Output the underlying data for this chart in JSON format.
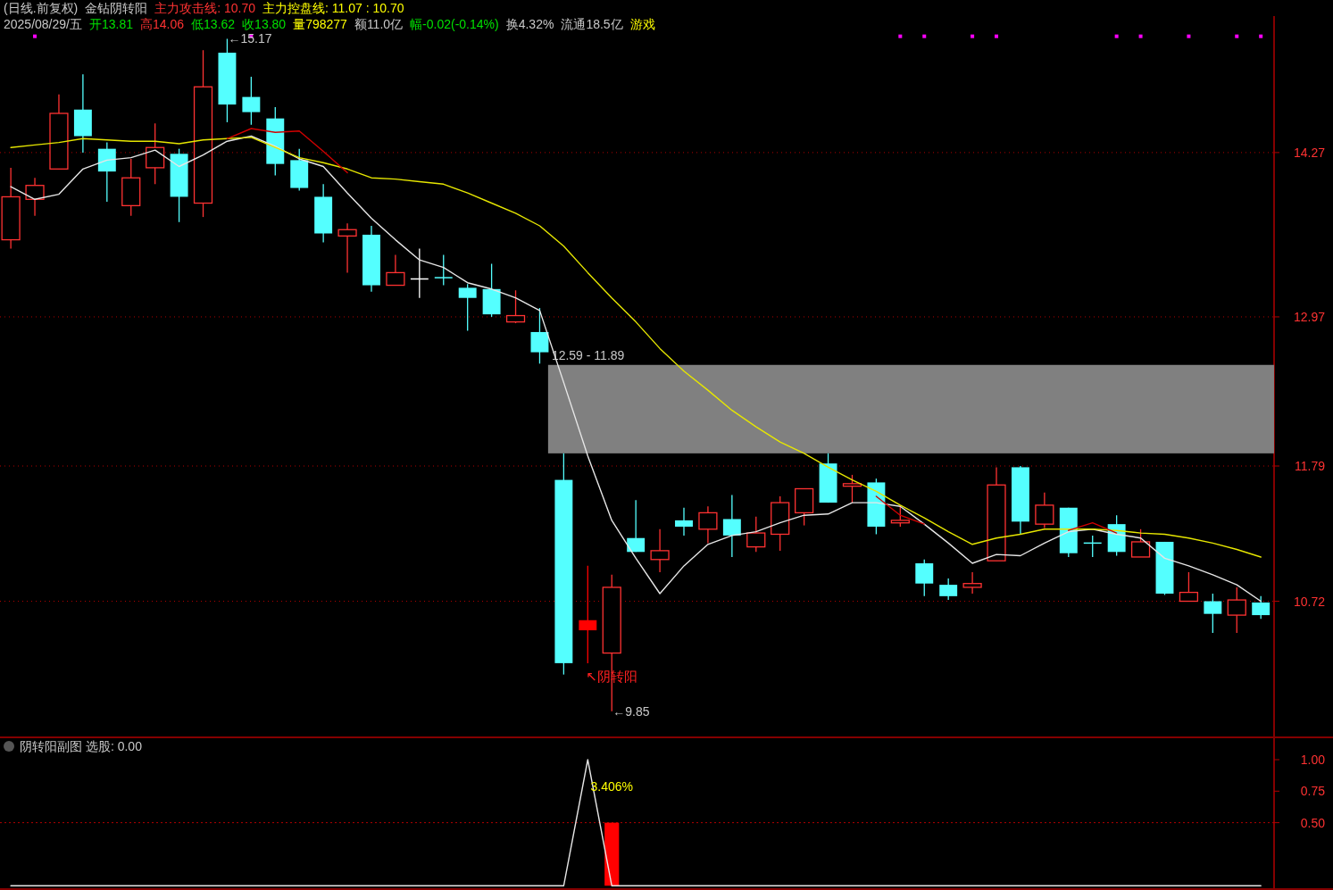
{
  "chart_data": [
    {
      "type": "candlestick",
      "tick_labels": "y",
      "categories": [
        null,
        null,
        null,
        null,
        null,
        null,
        null,
        null,
        null,
        null,
        null,
        null,
        null,
        null,
        null,
        null,
        null,
        null,
        null,
        null,
        null,
        null,
        null,
        null,
        null,
        null,
        null,
        null,
        null,
        null,
        null,
        null,
        null,
        null,
        null,
        null,
        null,
        null,
        null,
        null,
        null,
        null,
        null,
        null,
        null,
        null,
        null,
        null,
        null,
        null,
        null,
        null,
        null
      ],
      "ohlc": [
        [
          13.58,
          14.15,
          13.51,
          13.92
        ],
        [
          13.9,
          14.07,
          13.77,
          14.01
        ],
        [
          14.14,
          14.73,
          14.14,
          14.58
        ],
        [
          14.61,
          14.89,
          14.27,
          14.4
        ],
        [
          14.3,
          14.35,
          13.88,
          14.12
        ],
        [
          13.85,
          14.22,
          13.77,
          14.07
        ],
        [
          14.15,
          14.5,
          14.02,
          14.31
        ],
        [
          14.26,
          14.3,
          13.72,
          13.92
        ],
        [
          13.87,
          15.08,
          13.76,
          14.79
        ],
        [
          15.06,
          15.17,
          14.51,
          14.65
        ],
        [
          14.71,
          14.87,
          14.49,
          14.59
        ],
        [
          14.54,
          14.63,
          14.09,
          14.18
        ],
        [
          14.21,
          14.3,
          13.97,
          13.99
        ],
        [
          13.92,
          14.02,
          13.56,
          13.63
        ],
        [
          13.61,
          13.71,
          13.32,
          13.66
        ],
        [
          13.62,
          13.69,
          13.17,
          13.22
        ],
        [
          13.22,
          13.46,
          13.22,
          13.32
        ],
        [
          13.27,
          13.51,
          13.12,
          13.27
        ],
        [
          13.28,
          13.46,
          13.22,
          13.28
        ],
        [
          13.2,
          13.23,
          12.86,
          13.12
        ],
        [
          13.19,
          13.39,
          12.97,
          12.99
        ],
        [
          12.93,
          13.18,
          12.92,
          12.98
        ],
        [
          12.85,
          13.04,
          12.6,
          12.69
        ],
        [
          11.68,
          11.89,
          10.14,
          10.23
        ],
        [
          10.57,
          11.0,
          10.23,
          10.49
        ],
        [
          10.31,
          10.93,
          9.85,
          10.83
        ],
        [
          11.22,
          11.52,
          11.11,
          11.11
        ],
        [
          11.05,
          11.29,
          10.95,
          11.12
        ],
        [
          11.36,
          11.46,
          11.24,
          11.31
        ],
        [
          11.29,
          11.47,
          11.18,
          11.42
        ],
        [
          11.37,
          11.56,
          11.07,
          11.24
        ],
        [
          11.15,
          11.39,
          11.11,
          11.26
        ],
        [
          11.25,
          11.55,
          11.12,
          11.5
        ],
        [
          11.42,
          11.61,
          11.32,
          11.61
        ],
        [
          11.81,
          11.89,
          11.5,
          11.5
        ],
        [
          11.63,
          11.72,
          11.5,
          11.65
        ],
        [
          11.66,
          11.69,
          11.25,
          11.31
        ],
        [
          11.34,
          11.48,
          11.31,
          11.36
        ],
        [
          11.02,
          11.05,
          10.76,
          10.86
        ],
        [
          10.85,
          10.9,
          10.73,
          10.76
        ],
        [
          10.83,
          10.95,
          10.78,
          10.86
        ],
        [
          11.04,
          11.78,
          11.04,
          11.64
        ],
        [
          11.78,
          11.79,
          11.25,
          11.35
        ],
        [
          11.33,
          11.58,
          11.3,
          11.48
        ],
        [
          11.46,
          11.46,
          11.07,
          11.1
        ],
        [
          11.18,
          11.24,
          11.07,
          11.18
        ],
        [
          11.33,
          11.4,
          11.08,
          11.11
        ],
        [
          11.07,
          11.29,
          11.07,
          11.19
        ],
        [
          11.19,
          11.19,
          10.77,
          10.78
        ],
        [
          10.72,
          10.95,
          10.72,
          10.79
        ],
        [
          10.72,
          10.78,
          10.47,
          10.62
        ],
        [
          10.61,
          10.83,
          10.47,
          10.73
        ],
        [
          10.71,
          10.76,
          10.58,
          10.61
        ]
      ],
      "colors": [
        "#ff3232",
        "#ff3232",
        "#ff3232",
        "#54ffff",
        "#54ffff",
        "#ff3232",
        "#ff3232",
        "#54ffff",
        "#ff3232",
        "#54ffff",
        "#54ffff",
        "#54ffff",
        "#54ffff",
        "#54ffff",
        "#ff3232",
        "#54ffff",
        "#ff3232",
        "#ffffff",
        "#54ffff",
        "#54ffff",
        "#54ffff",
        "#ff3232",
        "#54ffff",
        "#54ffff",
        "#ff0000",
        "#ff3232",
        "#54ffff",
        "#ff3232",
        "#54ffff",
        "#ff3232",
        "#54ffff",
        "#ff3232",
        "#ff3232",
        "#ff3232",
        "#54ffff",
        "#ff3232",
        "#54ffff",
        "#ff3232",
        "#54ffff",
        "#54ffff",
        "#ff3232",
        "#ff3232",
        "#54ffff",
        "#ff3232",
        "#54ffff",
        "#54ffff",
        "#54ffff",
        "#ff3232",
        "#54ffff",
        "#ff3232",
        "#54ffff",
        "#ff3232",
        "#54ffff"
      ],
      "series": [
        {
          "type": "line",
          "color": "#e6e6e6",
          "values": [
            14.0,
            13.9,
            13.94,
            14.14,
            14.21,
            14.23,
            14.29,
            14.16,
            14.25,
            14.36,
            14.4,
            14.32,
            14.22,
            14.16,
            13.95,
            13.75,
            13.58,
            13.42,
            13.36,
            13.24,
            13.19,
            13.12,
            13.02,
            12.45,
            11.87,
            11.36,
            11.06,
            10.78,
            11.0,
            11.17,
            11.24,
            11.27,
            11.34,
            11.4,
            11.41,
            11.5,
            11.5,
            11.47,
            11.33,
            11.18,
            11.02,
            11.09,
            11.08,
            11.18,
            11.27,
            11.29,
            11.25,
            11.22,
            11.06,
            11.0,
            10.93,
            10.85,
            10.72
          ]
        },
        {
          "type": "line",
          "color": "#e6e600",
          "values": [
            14.31,
            14.33,
            14.35,
            14.38,
            14.37,
            14.36,
            14.36,
            14.34,
            14.37,
            14.38,
            14.39,
            14.31,
            14.23,
            14.19,
            14.14,
            14.07,
            14.06,
            14.04,
            14.02,
            13.95,
            13.87,
            13.79,
            13.69,
            13.53,
            13.32,
            13.12,
            12.93,
            12.72,
            12.54,
            12.39,
            12.23,
            12.1,
            11.98,
            11.89,
            11.78,
            11.68,
            11.59,
            11.48,
            11.38,
            11.27,
            11.17,
            11.22,
            11.25,
            11.29,
            11.29,
            11.29,
            11.28,
            11.26,
            11.25,
            11.22,
            11.18,
            11.13,
            11.07
          ]
        },
        {
          "type": "line",
          "color": "#d00000",
          "values": [
            null,
            null,
            null,
            null,
            null,
            null,
            null,
            null,
            null,
            14.38,
            14.46,
            14.43,
            14.44,
            14.28,
            14.11,
            null,
            null,
            null,
            null,
            null,
            null,
            null,
            null,
            null,
            null,
            null,
            null,
            null,
            null,
            null,
            null,
            null,
            null,
            null,
            null,
            null,
            11.55,
            11.4,
            11.33,
            null,
            null,
            null,
            null,
            null,
            11.28,
            11.34,
            11.26,
            null,
            null,
            null,
            null,
            null,
            null
          ]
        },
        {
          "type": "scatter",
          "color": "#ff00ff",
          "marker": "square",
          "values": [
            null,
            15.19,
            null,
            null,
            null,
            null,
            null,
            null,
            null,
            null,
            15.19,
            null,
            null,
            null,
            null,
            null,
            null,
            null,
            null,
            null,
            null,
            null,
            null,
            null,
            null,
            null,
            null,
            null,
            null,
            null,
            null,
            null,
            null,
            null,
            null,
            null,
            null,
            15.19,
            15.19,
            null,
            15.19,
            15.19,
            null,
            null,
            null,
            null,
            15.19,
            15.19,
            null,
            15.19,
            null,
            15.19,
            15.19
          ]
        }
      ],
      "ylim": [
        9.65,
        15.35
      ],
      "yticks": [
        14.27,
        12.97,
        11.79,
        10.72
      ],
      "grid": "y",
      "bands": [
        {
          "axis": "y",
          "from": 11.89,
          "to": 12.59,
          "label": "12.59 - 11.89",
          "color": "#808080"
        }
      ],
      "annotations": [
        "(日线.前复权)",
        "金钻阴转阳",
        "主力攻击线: 10.70",
        "主力控盘线: 11.07 : 10.70",
        "2025/08/29/五",
        "开13.81",
        "高14.06",
        "低13.62",
        "收13.80",
        "量798277",
        "额11.0亿",
        "幅-0.02(-0.14%)",
        "换4.32%",
        "流通18.5亿",
        "游戏",
        {
          "text": "←15.17",
          "y": 15.17
        },
        "←9.85",
        {
          "text": "↖阴转阳",
          "y": 10.23
        }
      ]
    },
    {
      "type": "line",
      "title": "阴转阳副图 选股: 0.00",
      "tick_labels": "y",
      "categories": [
        null,
        null,
        null,
        null,
        null,
        null,
        null,
        null,
        null,
        null,
        null,
        null,
        null,
        null,
        null,
        null,
        null,
        null,
        null,
        null,
        null,
        null,
        null,
        null,
        null,
        null,
        null,
        null,
        null,
        null,
        null,
        null,
        null,
        null,
        null,
        null,
        null,
        null,
        null,
        null,
        null,
        null,
        null,
        null,
        null,
        null,
        null,
        null,
        null,
        null,
        null,
        null,
        null
      ],
      "series": [
        {
          "type": "bar",
          "color": "#ff0000",
          "values": [
            null,
            null,
            null,
            null,
            null,
            null,
            null,
            null,
            null,
            null,
            null,
            null,
            null,
            null,
            null,
            null,
            null,
            null,
            null,
            null,
            null,
            null,
            null,
            null,
            null,
            0.5,
            null,
            null,
            null,
            null,
            null,
            null,
            null,
            null,
            null,
            null,
            null,
            null,
            null,
            null,
            null,
            null,
            null,
            null,
            null,
            null,
            null,
            null,
            null,
            null,
            null,
            null,
            null
          ]
        },
        {
          "type": "line",
          "color": "#e6e6e6",
          "values": [
            0,
            0,
            0,
            0,
            0,
            0,
            0,
            0,
            0,
            0,
            0,
            0,
            0,
            0,
            0,
            0,
            0,
            0,
            0,
            0,
            0,
            0,
            0,
            0,
            1,
            0,
            0,
            0,
            0,
            0,
            0,
            0,
            0,
            0,
            0,
            0,
            0,
            0,
            0,
            0,
            0,
            0,
            0,
            0,
            0,
            0,
            0,
            0,
            0,
            0,
            0,
            0,
            0
          ]
        }
      ],
      "ylim": [
        -0.02,
        1.17
      ],
      "yticks": [
        {
          "value": 1,
          "label": "1.00"
        },
        {
          "value": 0.75,
          "label": "0.75"
        },
        {
          "value": 0.5,
          "label": "0.50"
        }
      ],
      "ref_lines": [
        {
          "axis": "y",
          "value": 0.5,
          "color": "#b00000",
          "line_style": "dotted"
        }
      ],
      "annotations": [
        "3.406%"
      ]
    }
  ]
}
